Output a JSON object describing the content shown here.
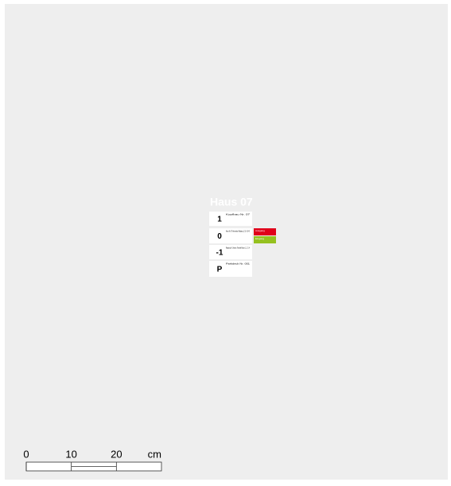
{
  "sign": {
    "title": "Haus 07",
    "floors": [
      {
        "level": "1",
        "text": "Kopfbau Nr. 07"
      },
      {
        "level": "0",
        "text": "Haus Nr. 07 Information Raplang 1, 31, 42, 43"
      },
      {
        "level": "-1",
        "text": "Raplang 4, 5 Archiv, Technik Raum 1, 2, 3, 4"
      },
      {
        "level": "P",
        "text": "Parkdeck Nr. 001"
      }
    ],
    "tags": [
      {
        "text": "Ausgang",
        "color": "#e0001a"
      },
      {
        "text": "Eingang",
        "color": "#95c11f"
      }
    ]
  },
  "scale": {
    "ticks": [
      0,
      10,
      20
    ],
    "lim": [
      0,
      30
    ],
    "unit": "cm"
  }
}
